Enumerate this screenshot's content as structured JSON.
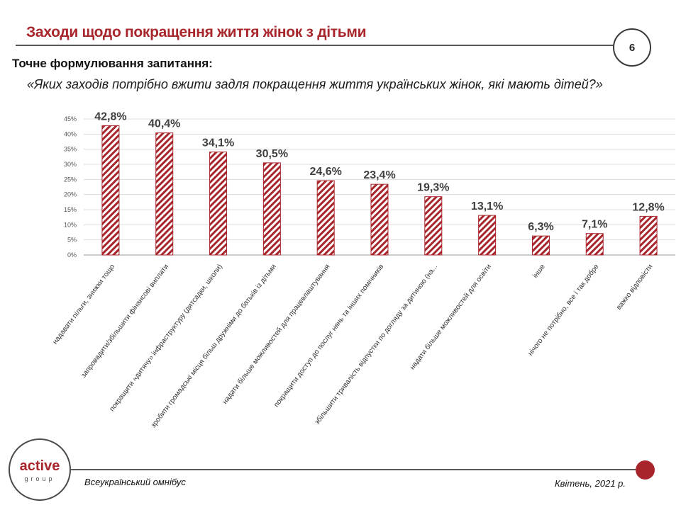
{
  "header": {
    "title": "Заходи щодо покращення життя жінок з дітьми",
    "page_number": "6",
    "question_label": "Точне формулювання  запитання:",
    "question_text": "«Яких заходів потрібно вжити задля покращення життя українських жінок, які мають дітей?»"
  },
  "footer": {
    "logo_word": "active",
    "logo_sub": "group",
    "left_text": "Всеукраїнський омнібус",
    "right_text": "Квітень, 2021 р."
  },
  "colors": {
    "accent": "#a8262b",
    "bar_stripe": "#a8262b"
  },
  "chart_data": {
    "type": "bar",
    "title": "",
    "xlabel": "",
    "ylabel": "",
    "ylim": [
      0,
      45
    ],
    "y_ticks": [
      "0%",
      "5%",
      "10%",
      "15%",
      "20%",
      "25%",
      "30%",
      "35%",
      "40%",
      "45%"
    ],
    "grid": true,
    "categories": [
      "надавати пільги, знижки тощо",
      "запровадити/збільшити фінансові виплати",
      "покращити «дитячу» інфраструктуру (дитсадки, школи)",
      "зробити громадські місця більш дружніми до батьків із дітьми",
      "надати більше можливостей для працевлаштування",
      "покращити доступ до послуг нянь та інших помічників",
      "збільшити тривалість відпустки по догляду за дитиною (на...",
      "надати більше можливостей для освіти",
      "інше",
      "нічого не потрібно, все і так добре",
      "важко відповісти"
    ],
    "values": [
      42.8,
      40.4,
      34.1,
      30.5,
      24.6,
      23.4,
      19.3,
      13.1,
      6.3,
      7.1,
      12.8
    ],
    "value_labels": [
      "42,8%",
      "40,4%",
      "34,1%",
      "30,5%",
      "24,6%",
      "23,4%",
      "19,3%",
      "13,1%",
      "6,3%",
      "7,1%",
      "12,8%"
    ]
  }
}
